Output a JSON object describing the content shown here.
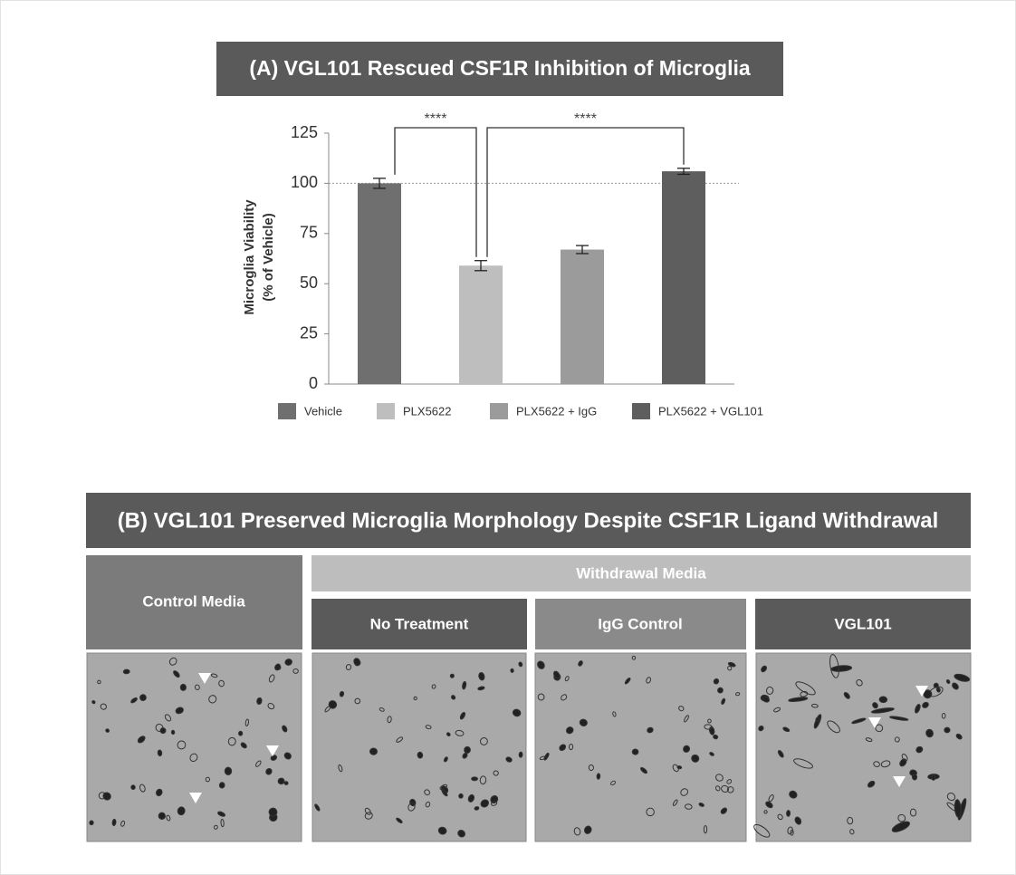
{
  "chart_data": {
    "type": "bar",
    "title": "(A) VGL101 Rescued CSF1R Inhibition of Microglia",
    "y_label_lines": [
      "Microglia Viability",
      "(% of Vehicle)"
    ],
    "categories": [
      "Vehicle",
      "PLX5622",
      "PLX5622 + IgG",
      "PLX5622 + VGL101"
    ],
    "values": [
      100,
      59,
      67,
      106
    ],
    "errors": [
      2.5,
      2.5,
      2,
      1.5
    ],
    "colors": [
      "#6f6f6f",
      "#bebebe",
      "#9b9b9b",
      "#5e5e5e"
    ],
    "ylim": [
      0,
      125
    ],
    "yticks": [
      0,
      25,
      50,
      75,
      100,
      125
    ],
    "reference_line": 100,
    "significance": [
      {
        "between": [
          0,
          1
        ],
        "label": "****"
      },
      {
        "between": [
          1,
          3
        ],
        "label": "****"
      }
    ]
  },
  "panel_b": {
    "title": "(B) VGL101 Preserved Microglia Morphology Despite CSF1R Ligand Withdrawal",
    "control": "Control Media",
    "withdrawal": "Withdrawal Media",
    "conditions": [
      "No Treatment",
      "IgG Control",
      "VGL101"
    ]
  }
}
